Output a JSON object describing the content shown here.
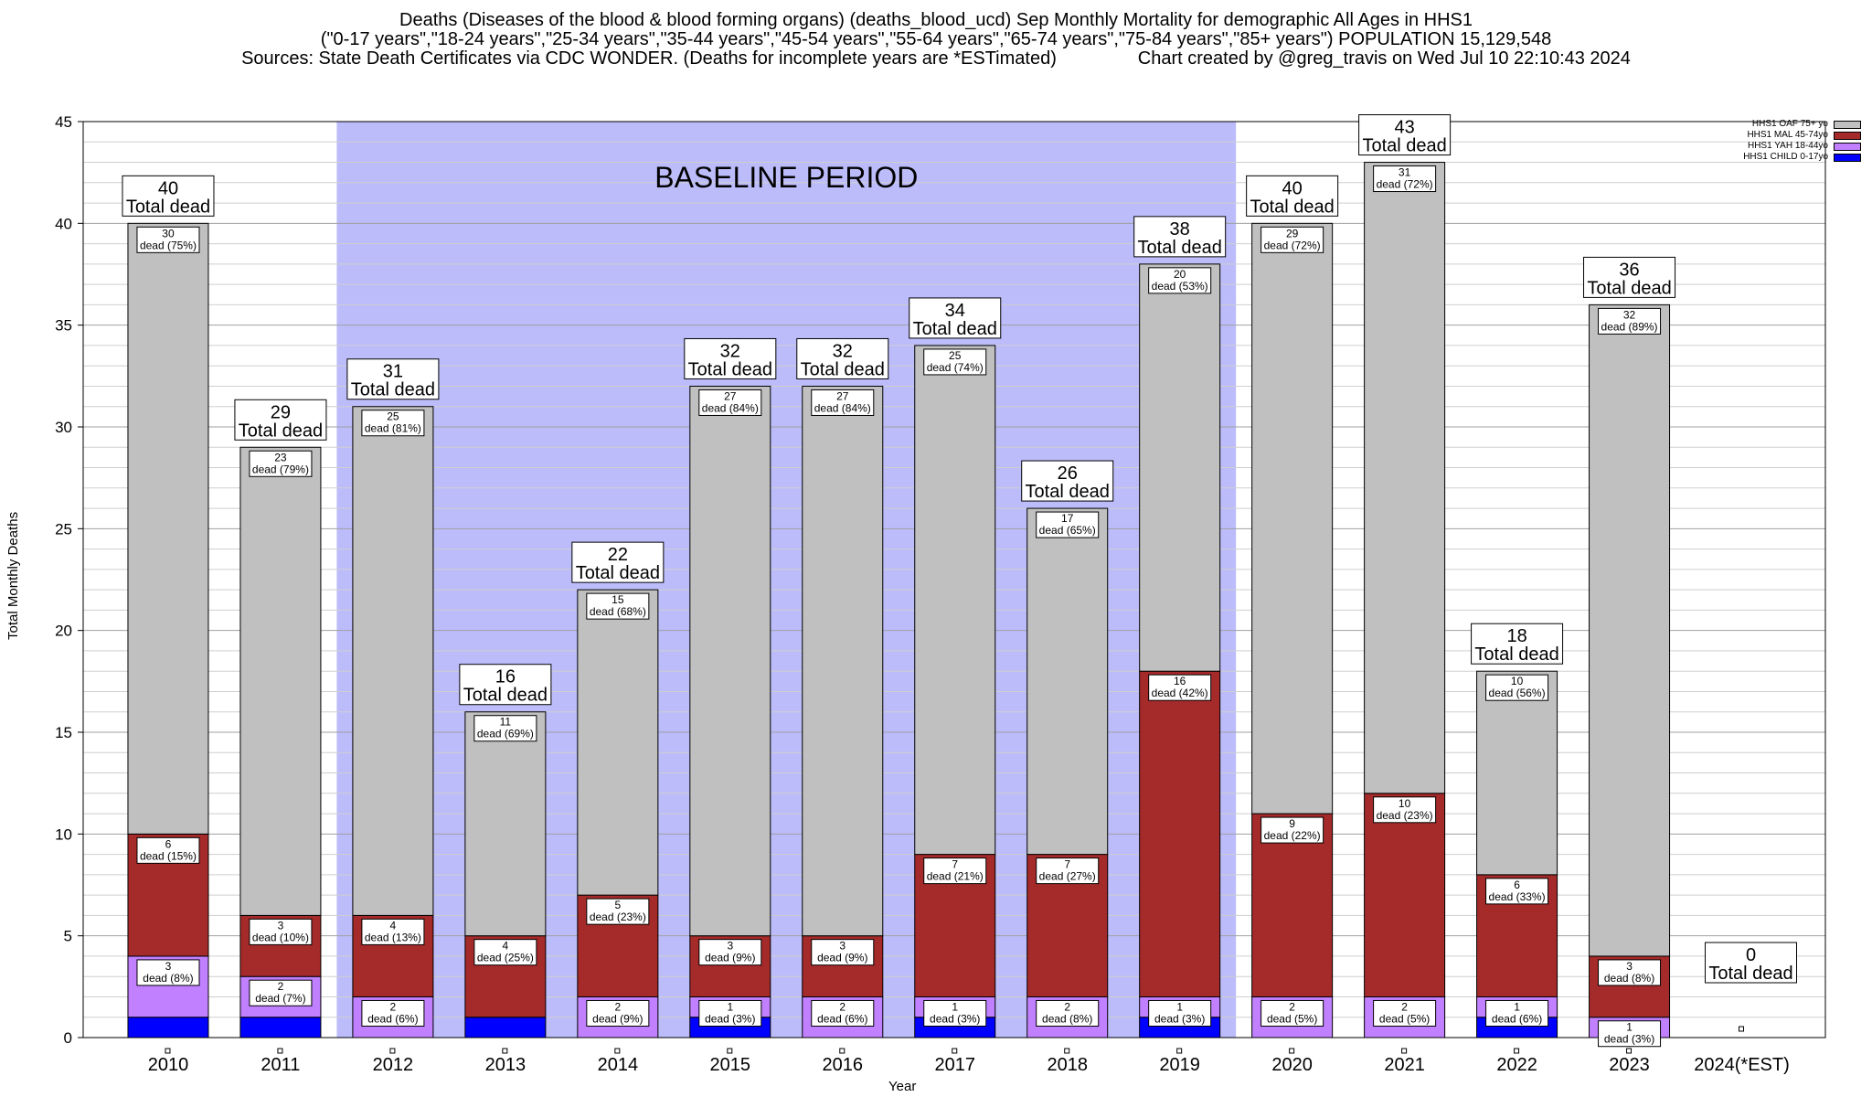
{
  "chart_data": {
    "type": "bar",
    "stacked": true,
    "title_lines": [
      "Deaths (Diseases of the blood & blood forming organs) (deaths_blood_ucd) Sep Monthly Mortality for demographic All Ages in HHS1",
      "(\"0-17 years\",\"18-24 years\",\"25-34 years\",\"35-44 years\",\"45-54 years\",\"55-64 years\",\"65-74 years\",\"75-84 years\",\"85+ years\") POPULATION 15,129,548",
      "Sources: State Death Certificates via CDC WONDER. (Deaths for incomplete years are *ESTimated)                Chart created by @greg_travis on Wed Jul 10 22:10:43 2024"
    ],
    "xlabel": "Year",
    "ylabel": "Total Monthly Deaths",
    "ylim": [
      0,
      45
    ],
    "yticks": [
      0,
      5,
      10,
      15,
      20,
      25,
      30,
      35,
      40,
      45
    ],
    "baseline_label": "BASELINE PERIOD",
    "baseline_range": [
      "2012",
      "2019"
    ],
    "total_suffix": "Total dead",
    "categories": [
      "2010",
      "2011",
      "2012",
      "2013",
      "2014",
      "2015",
      "2016",
      "2017",
      "2018",
      "2019",
      "2020",
      "2021",
      "2022",
      "2023",
      "2024(*EST)"
    ],
    "series": [
      {
        "name": "HHS1 CHILD 0-17yo",
        "color": "#0000ff",
        "values": [
          1,
          1,
          0,
          1,
          0,
          1,
          0,
          1,
          0,
          1,
          0,
          0,
          1,
          0,
          0
        ],
        "labels": [
          "",
          "",
          "",
          "",
          "",
          "",
          "",
          "",
          "",
          "",
          "",
          "",
          "",
          "",
          ""
        ]
      },
      {
        "name": "HHS1 YAH 18-44yo",
        "color": "#c080ff",
        "values": [
          3,
          2,
          2,
          0,
          2,
          1,
          2,
          1,
          2,
          1,
          2,
          2,
          1,
          1,
          0
        ],
        "labels": [
          "3\ndead (8%)",
          "2\ndead (7%)",
          "2\ndead (6%)",
          "",
          "2\ndead (9%)",
          "1\ndead (3%)",
          "2\ndead (6%)",
          "1\ndead (3%)",
          "2\ndead (8%)",
          "1\ndead (3%)",
          "2\ndead (5%)",
          "2\ndead (5%)",
          "1\ndead (6%)",
          "1\ndead (3%)",
          ""
        ]
      },
      {
        "name": "HHS1 MAL 45-74yo",
        "color": "#a52a2a",
        "values": [
          6,
          3,
          4,
          4,
          5,
          3,
          3,
          7,
          7,
          16,
          9,
          10,
          6,
          3,
          0
        ],
        "labels": [
          "6\ndead (15%)",
          "3\ndead (10%)",
          "4\ndead (13%)",
          "4\ndead (25%)",
          "5\ndead (23%)",
          "3\ndead (9%)",
          "3\ndead (9%)",
          "7\ndead (21%)",
          "7\ndead (27%)",
          "16\ndead (42%)",
          "9\ndead (22%)",
          "10\ndead (23%)",
          "6\ndead (33%)",
          "3\ndead (8%)",
          ""
        ]
      },
      {
        "name": "HHS1 OAF 75+ yo",
        "color": "#c0c0c0",
        "values": [
          30,
          23,
          25,
          11,
          15,
          27,
          27,
          25,
          17,
          20,
          29,
          31,
          10,
          32,
          0
        ],
        "labels": [
          "30\ndead (75%)",
          "23\ndead (79%)",
          "25\ndead (81%)",
          "11\ndead (69%)",
          "15\ndead (68%)",
          "27\ndead (84%)",
          "27\ndead (84%)",
          "25\ndead (74%)",
          "17\ndead (65%)",
          "20\ndead (53%)",
          "29\ndead (72%)",
          "31\ndead (72%)",
          "10\ndead (56%)",
          "32\ndead (89%)",
          ""
        ]
      }
    ],
    "totals": [
      40,
      29,
      31,
      16,
      22,
      32,
      32,
      34,
      26,
      38,
      40,
      43,
      18,
      36,
      0
    ],
    "legend_position": "top-right",
    "grid": true
  }
}
